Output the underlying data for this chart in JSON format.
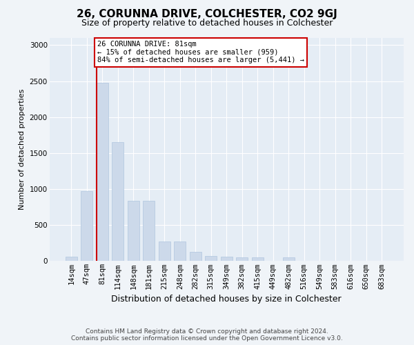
{
  "title": "26, CORUNNA DRIVE, COLCHESTER, CO2 9GJ",
  "subtitle": "Size of property relative to detached houses in Colchester",
  "xlabel": "Distribution of detached houses by size in Colchester",
  "ylabel": "Number of detached properties",
  "categories": [
    "14sqm",
    "47sqm",
    "81sqm",
    "114sqm",
    "148sqm",
    "181sqm",
    "215sqm",
    "248sqm",
    "282sqm",
    "315sqm",
    "349sqm",
    "382sqm",
    "415sqm",
    "449sqm",
    "482sqm",
    "516sqm",
    "549sqm",
    "583sqm",
    "616sqm",
    "650sqm",
    "683sqm"
  ],
  "values": [
    60,
    970,
    2480,
    1650,
    840,
    840,
    270,
    270,
    130,
    75,
    65,
    55,
    50,
    0,
    50,
    0,
    0,
    0,
    0,
    0,
    0
  ],
  "bar_color": "#ccd9ea",
  "bar_edge_color": "#afc6df",
  "red_line_color": "#cc0000",
  "annotation_text": "26 CORUNNA DRIVE: 81sqm\n← 15% of detached houses are smaller (959)\n84% of semi-detached houses are larger (5,441) →",
  "annotation_box_facecolor": "white",
  "annotation_box_edgecolor": "#cc0000",
  "ylim": [
    0,
    3100
  ],
  "yticks": [
    0,
    500,
    1000,
    1500,
    2000,
    2500,
    3000
  ],
  "footer_line1": "Contains HM Land Registry data © Crown copyright and database right 2024.",
  "footer_line2": "Contains public sector information licensed under the Open Government Licence v3.0.",
  "fig_bg_color": "#f0f4f8",
  "plot_bg_color": "#e5edf5",
  "grid_color": "#ffffff",
  "title_fontsize": 11,
  "subtitle_fontsize": 9,
  "ylabel_fontsize": 8,
  "xlabel_fontsize": 9,
  "tick_fontsize": 7.5,
  "footer_fontsize": 6.5,
  "annotation_fontsize": 7.5
}
